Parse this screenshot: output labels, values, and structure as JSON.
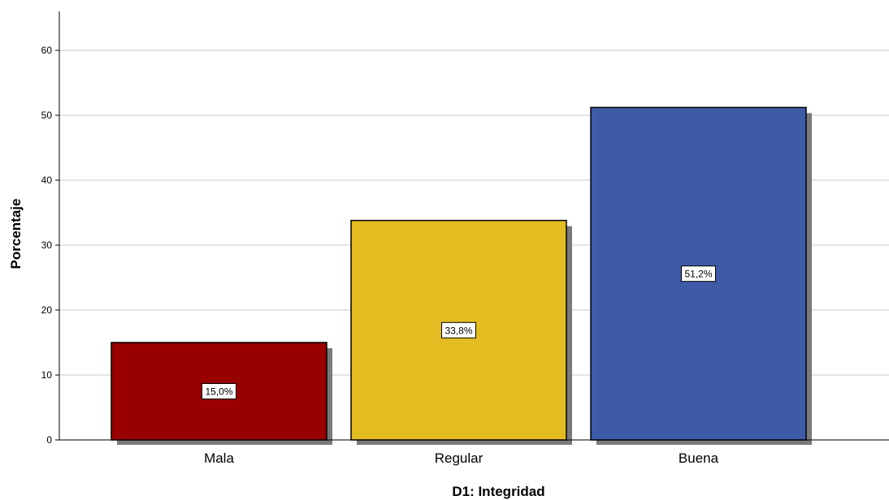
{
  "chart_data": {
    "type": "bar",
    "categories": [
      "Mala",
      "Regular",
      "Buena"
    ],
    "values": [
      15.0,
      33.8,
      51.2
    ],
    "data_labels": [
      "15,0%",
      "33,8%",
      "51,2%"
    ],
    "colors": [
      "#990000",
      "#e3bc22",
      "#3e5ba8"
    ],
    "xlabel": "D1: Integridad",
    "ylabel": "Porcentaje",
    "ylim": [
      0,
      66
    ],
    "yticks": [
      0,
      10,
      20,
      30,
      40,
      50,
      60
    ],
    "grid": true,
    "legend": false
  }
}
